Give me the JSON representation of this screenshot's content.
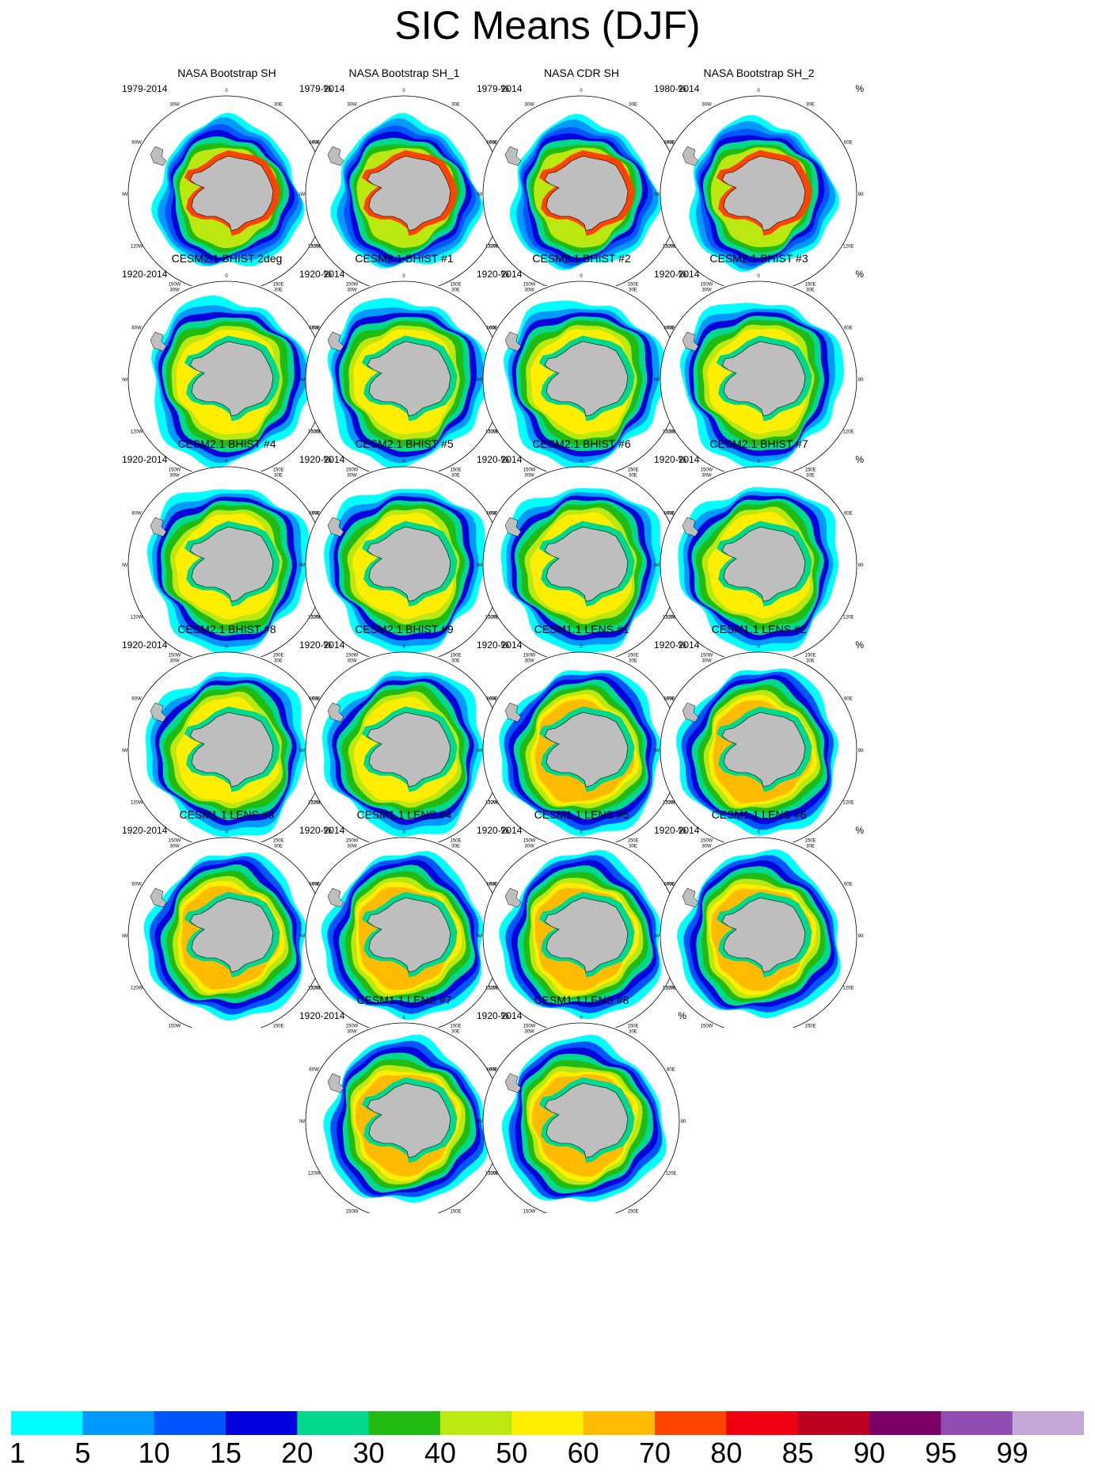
{
  "title": "SIC Means (DJF)",
  "units": "%",
  "lon_labels": [
    "0",
    "30E",
    "60E",
    "90E",
    "120E",
    "150E",
    "180",
    "150W",
    "120W",
    "90W",
    "60W",
    "30W"
  ],
  "panels": [
    {
      "name": "NASA Bootstrap SH",
      "years": "1979-2014",
      "kind": "obs"
    },
    {
      "name": "NASA Bootstrap SH_1",
      "years": "1979-2014",
      "kind": "obs"
    },
    {
      "name": "NASA CDR SH",
      "years": "1979-2014",
      "kind": "obs"
    },
    {
      "name": "NASA Bootstrap SH_2",
      "years": "1980-2014",
      "kind": "obs"
    },
    {
      "name": "CESM2.1 BHIST 2deg",
      "years": "1920-2014",
      "kind": "cesm2"
    },
    {
      "name": "CESM2.1 BHIST #1",
      "years": "1920-2014",
      "kind": "cesm2"
    },
    {
      "name": "CESM2.1 BHIST #2",
      "years": "1920-2014",
      "kind": "cesm2"
    },
    {
      "name": "CESM2.1 BHIST #3",
      "years": "1920-2014",
      "kind": "cesm2"
    },
    {
      "name": "CESM2.1 BHIST #4",
      "years": "1920-2014",
      "kind": "cesm2"
    },
    {
      "name": "CESM2.1 BHIST #5",
      "years": "1920-2014",
      "kind": "cesm2"
    },
    {
      "name": "CESM2.1 BHIST #6",
      "years": "1920-2014",
      "kind": "cesm2"
    },
    {
      "name": "CESM2.1 BHIST #7",
      "years": "1920-2014",
      "kind": "cesm2"
    },
    {
      "name": "CESM2.1 BHIST #8",
      "years": "1920-2014",
      "kind": "cesm2"
    },
    {
      "name": "CESM2.1 BHIST #9",
      "years": "1920-2014",
      "kind": "cesm2"
    },
    {
      "name": "CESM1.1 LENS #1",
      "years": "1920-2014",
      "kind": "lens"
    },
    {
      "name": "CESM1.1 LENS #2",
      "years": "1920-2014",
      "kind": "lens"
    },
    {
      "name": "CESM1.1 LENS #3",
      "years": "1920-2014",
      "kind": "lens"
    },
    {
      "name": "CESM1.1 LENS #4",
      "years": "1920-2014",
      "kind": "lens"
    },
    {
      "name": "CESM1.1 LENS #5",
      "years": "1920-2014",
      "kind": "lens"
    },
    {
      "name": "CESM1.1 LENS #6",
      "years": "1920-2014",
      "kind": "lens"
    },
    {
      "name": "CESM1.1 LENS #7",
      "years": "1920-2014",
      "kind": "lens"
    },
    {
      "name": "CESM1.1 LENS #8",
      "years": "1920-2014",
      "kind": "lens"
    }
  ],
  "colorbar": {
    "labels": [
      "1",
      "5",
      "10",
      "15",
      "20",
      "30",
      "40",
      "50",
      "60",
      "70",
      "80",
      "85",
      "90",
      "95",
      "99"
    ],
    "colors": [
      "#00ffff",
      "#0099ff",
      "#0055ff",
      "#0000dd",
      "#00d98c",
      "#22bb11",
      "#bbe811",
      "#ffee00",
      "#ffbb00",
      "#ff4400",
      "#ee0011",
      "#bb0022",
      "#7d0066",
      "#8f4db2",
      "#c4a8d8"
    ]
  },
  "colors": {
    "land": "#bebebe",
    "ocean": "#ffffff",
    "coast": "#000000"
  }
}
